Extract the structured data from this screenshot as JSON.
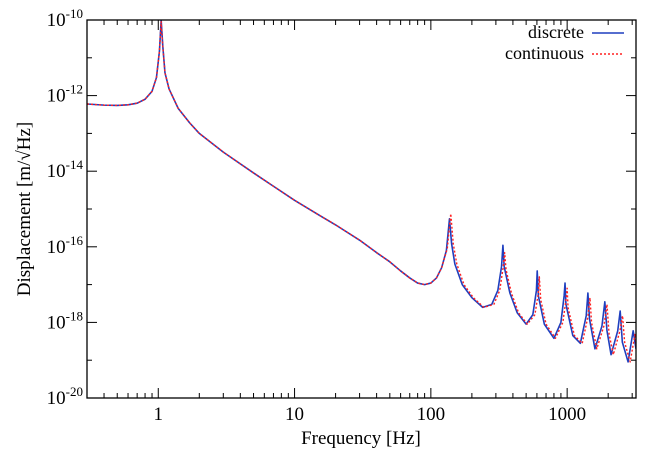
{
  "chart_data": {
    "type": "line",
    "xlabel": "Frequency [Hz]",
    "ylabel": "Displacement [m/√Hz]",
    "x_scale": "log",
    "y_scale": "log",
    "xlim": [
      0.3,
      3200
    ],
    "ylim": [
      1e-20,
      1e-10
    ],
    "grid": false,
    "legend_position": "top-right",
    "x_ticks": [
      {
        "value": 1,
        "label": "1"
      },
      {
        "value": 10,
        "label": "10"
      },
      {
        "value": 100,
        "label": "100"
      },
      {
        "value": 1000,
        "label": "1000"
      }
    ],
    "y_ticks": [
      {
        "value": 1e-10,
        "base": "10",
        "exp": "-10"
      },
      {
        "value": 1e-12,
        "base": "10",
        "exp": "-12"
      },
      {
        "value": 1e-14,
        "base": "10",
        "exp": "-14"
      },
      {
        "value": 1e-16,
        "base": "10",
        "exp": "-16"
      },
      {
        "value": 1e-18,
        "base": "10",
        "exp": "-18"
      },
      {
        "value": 1e-20,
        "base": "10",
        "exp": "-20"
      }
    ],
    "series": [
      {
        "name": "discrete",
        "color": "#1f3fbf",
        "style": "solid",
        "points": [
          [
            0.3,
            6e-13
          ],
          [
            0.4,
            5.6e-13
          ],
          [
            0.5,
            5.5e-13
          ],
          [
            0.6,
            5.7e-13
          ],
          [
            0.7,
            6.3e-13
          ],
          [
            0.8,
            8e-13
          ],
          [
            0.9,
            1.3e-12
          ],
          [
            0.97,
            3e-12
          ],
          [
            1.02,
            1.5e-11
          ],
          [
            1.05,
            1e-10
          ],
          [
            1.08,
            2e-11
          ],
          [
            1.12,
            4e-12
          ],
          [
            1.2,
            1.5e-12
          ],
          [
            1.4,
            4.6e-13
          ],
          [
            1.7,
            1.9e-13
          ],
          [
            2,
            1e-13
          ],
          [
            3,
            3.2e-14
          ],
          [
            5,
            9e-15
          ],
          [
            7,
            4e-15
          ],
          [
            10,
            1.7e-15
          ],
          [
            15,
            7e-16
          ],
          [
            20,
            3.8e-16
          ],
          [
            30,
            1.5e-16
          ],
          [
            40,
            7e-17
          ],
          [
            50,
            4e-17
          ],
          [
            60,
            2.3e-17
          ],
          [
            70,
            1.5e-17
          ],
          [
            80,
            1.1e-17
          ],
          [
            90,
            1e-17
          ],
          [
            100,
            1.1e-17
          ],
          [
            110,
            1.5e-17
          ],
          [
            120,
            2.8e-17
          ],
          [
            130,
            8e-17
          ],
          [
            137,
            5.5e-16
          ],
          [
            142,
            1.2e-16
          ],
          [
            150,
            3.5e-17
          ],
          [
            170,
            1e-17
          ],
          [
            200,
            4.5e-18
          ],
          [
            240,
            2.5e-18
          ],
          [
            280,
            3e-18
          ],
          [
            310,
            7e-18
          ],
          [
            330,
            3e-17
          ],
          [
            338,
            1.1e-16
          ],
          [
            345,
            3e-17
          ],
          [
            380,
            6e-18
          ],
          [
            430,
            1.8e-18
          ],
          [
            500,
            9e-19
          ],
          [
            560,
            1.6e-18
          ],
          [
            595,
            7e-18
          ],
          [
            603,
            2.3e-17
          ],
          [
            615,
            5e-18
          ],
          [
            680,
            9e-19
          ],
          [
            800,
            3.8e-19
          ],
          [
            900,
            1e-18
          ],
          [
            950,
            5e-18
          ],
          [
            965,
            1.1e-17
          ],
          [
            980,
            3e-18
          ],
          [
            1100,
            4.5e-19
          ],
          [
            1250,
            2.8e-19
          ],
          [
            1380,
            1.5e-18
          ],
          [
            1420,
            6e-18
          ],
          [
            1460,
            1.2e-18
          ],
          [
            1600,
            2e-19
          ],
          [
            1800,
            8e-19
          ],
          [
            1890,
            3.5e-18
          ],
          [
            1960,
            6e-19
          ],
          [
            2100,
            1.4e-19
          ],
          [
            2350,
            6e-19
          ],
          [
            2450,
            2e-18
          ],
          [
            2540,
            3e-19
          ],
          [
            2800,
            9e-20
          ],
          [
            3050,
            6e-19
          ],
          [
            3200,
            2e-19
          ]
        ]
      },
      {
        "name": "continuous",
        "color": "#ff2020",
        "style": "dotted",
        "points": [
          [
            0.3,
            6e-13
          ],
          [
            0.4,
            5.6e-13
          ],
          [
            0.5,
            5.5e-13
          ],
          [
            0.6,
            5.7e-13
          ],
          [
            0.7,
            6.3e-13
          ],
          [
            0.8,
            8e-13
          ],
          [
            0.9,
            1.3e-12
          ],
          [
            0.97,
            3e-12
          ],
          [
            1.02,
            1.5e-11
          ],
          [
            1.05,
            9e-11
          ],
          [
            1.08,
            2e-11
          ],
          [
            1.12,
            4e-12
          ],
          [
            1.2,
            1.5e-12
          ],
          [
            1.4,
            4.6e-13
          ],
          [
            1.7,
            1.9e-13
          ],
          [
            2,
            1e-13
          ],
          [
            3,
            3.2e-14
          ],
          [
            5,
            9e-15
          ],
          [
            7,
            4e-15
          ],
          [
            10,
            1.7e-15
          ],
          [
            15,
            7e-16
          ],
          [
            20,
            3.8e-16
          ],
          [
            30,
            1.5e-16
          ],
          [
            40,
            7e-17
          ],
          [
            50,
            4e-17
          ],
          [
            60,
            2.3e-17
          ],
          [
            70,
            1.5e-17
          ],
          [
            80,
            1.1e-17
          ],
          [
            90,
            1e-17
          ],
          [
            100,
            1.1e-17
          ],
          [
            110,
            1.5e-17
          ],
          [
            120,
            2.8e-17
          ],
          [
            132,
            9e-17
          ],
          [
            140,
            7.5e-16
          ],
          [
            146,
            1.2e-16
          ],
          [
            155,
            3.5e-17
          ],
          [
            175,
            1e-17
          ],
          [
            205,
            4.5e-18
          ],
          [
            245,
            2.5e-18
          ],
          [
            290,
            3e-18
          ],
          [
            320,
            7e-18
          ],
          [
            340,
            3e-17
          ],
          [
            348,
            7e-17
          ],
          [
            356,
            2.5e-17
          ],
          [
            390,
            6e-18
          ],
          [
            440,
            1.8e-18
          ],
          [
            510,
            9e-19
          ],
          [
            580,
            1.6e-18
          ],
          [
            615,
            6e-18
          ],
          [
            625,
            1.6e-17
          ],
          [
            640,
            4e-18
          ],
          [
            700,
            9e-19
          ],
          [
            820,
            3.8e-19
          ],
          [
            930,
            1e-18
          ],
          [
            985,
            4.5e-18
          ],
          [
            1000,
            8e-18
          ],
          [
            1015,
            2.5e-18
          ],
          [
            1130,
            4.5e-19
          ],
          [
            1290,
            2.8e-19
          ],
          [
            1420,
            1.4e-18
          ],
          [
            1470,
            4.5e-18
          ],
          [
            1510,
            1e-18
          ],
          [
            1650,
            2e-19
          ],
          [
            1860,
            8e-19
          ],
          [
            1960,
            3e-18
          ],
          [
            2030,
            5e-19
          ],
          [
            2180,
            1.4e-19
          ],
          [
            2440,
            6e-19
          ],
          [
            2550,
            1.5e-18
          ],
          [
            2640,
            3e-19
          ],
          [
            2900,
            9e-20
          ],
          [
            3150,
            5e-19
          ],
          [
            3200,
            2.5e-19
          ]
        ]
      }
    ]
  }
}
